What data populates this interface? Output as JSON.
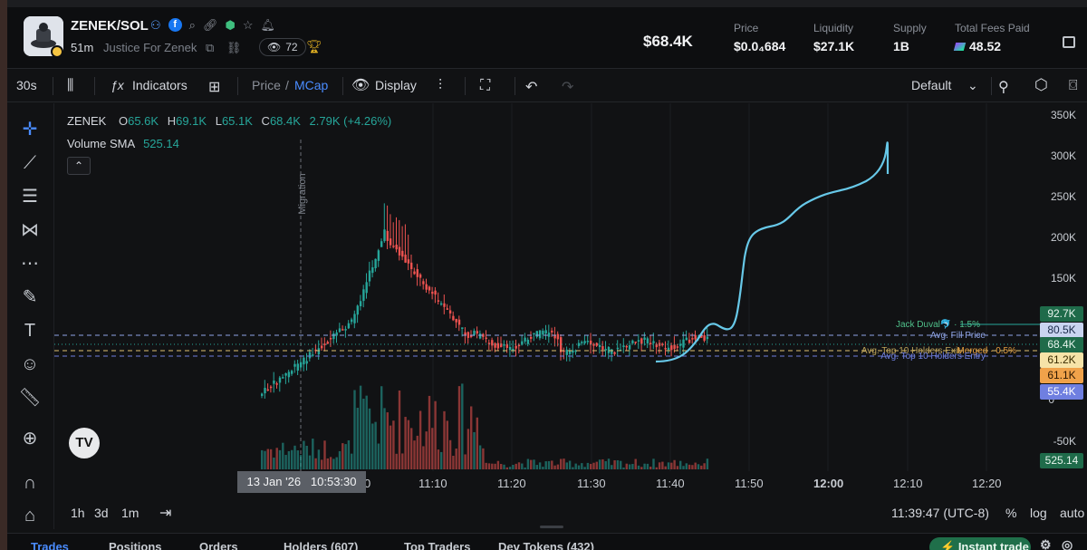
{
  "header": {
    "pair": "ZENEK/SOL",
    "age": "51m",
    "tagline": "Justice For Zenek",
    "viewers": "72",
    "market_cap": "$68.4K",
    "stats": [
      {
        "label": "Price",
        "value": "$0.0₄684"
      },
      {
        "label": "Liquidity",
        "value": "$27.1K"
      },
      {
        "label": "Supply",
        "value": "1B"
      },
      {
        "label": "Total Fees Paid",
        "value": "48.52"
      }
    ]
  },
  "toolbar": {
    "interval": "30s",
    "indicators": "Indicators",
    "price": "Price",
    "slash": "/",
    "mcap": "MCap",
    "display": "Display",
    "layout": "Default"
  },
  "legend": {
    "symbol": "ZENEK",
    "o_key": "O",
    "o": "65.6K",
    "h_key": "H",
    "h": "69.1K",
    "l_key": "L",
    "l": "65.1K",
    "c_key": "C",
    "c": "68.4K",
    "change": "2.79K (+4.26%)",
    "volume_label": "Volume SMA",
    "volume_value": "525.14"
  },
  "annotations": {
    "migration": "Migration",
    "jack": "Jack Duval🐬 · 1.5%",
    "avg_fill": "Avg. Fill Price",
    "avg_top_exit": "Avg. Top 10 Holders Exit",
    "merged_label": "Merged · 0.5%",
    "avg_top_entry": "Avg. Top 10 Holders Entry"
  },
  "y_axis": {
    "ticks": [
      "350K",
      "300K",
      "250K",
      "200K",
      "150K",
      "0",
      "-50K"
    ],
    "badges": [
      {
        "text": "92.7K",
        "bg": "#1f6b4a",
        "fg": "#e6f4ec"
      },
      {
        "text": "80.5K",
        "bg": "#c9d4f0",
        "fg": "#1a2a4a"
      },
      {
        "text": "68.4K",
        "bg": "#1f6b4a",
        "fg": "#e6f4ec"
      },
      {
        "text": "61.2K",
        "bg": "#f6e3a8",
        "fg": "#3a2c00"
      },
      {
        "text": "61.1K",
        "bg": "#f0a24a",
        "fg": "#2a1600"
      },
      {
        "text": "55.4K",
        "bg": "#6f7fe0",
        "fg": "#ffffff"
      },
      {
        "text": "525.14",
        "bg": "#1f6b4a",
        "fg": "#e6f4ec"
      }
    ]
  },
  "x_axis": {
    "crosshair": "13 Jan '26   10:53:30",
    "ticks": [
      "11:10",
      "11:20",
      "11:30",
      "11:40",
      "11:50",
      "12:00",
      "12:10",
      "12:20"
    ],
    "partial": "0"
  },
  "bottom": {
    "ranges": [
      "1h",
      "3d",
      "1m"
    ],
    "clock": "11:39:47 (UTC-8)",
    "pct": "%",
    "log": "log",
    "auto": "auto"
  },
  "tabs": [
    "Trades",
    "Positions",
    "Orders",
    "Holders (607)",
    "Top Traders",
    "Dev Tokens (432)"
  ],
  "instant_trade": "Instant trade",
  "colors": {
    "up": "#26a69a",
    "down": "#ef5350",
    "drawing": "#67c8e8",
    "accent": "#4a8cff"
  },
  "chart_data": {
    "type": "candlestick",
    "x_ticks": [
      "11:10",
      "11:20",
      "11:30",
      "11:40",
      "11:50",
      "12:00",
      "12:10",
      "12:20"
    ],
    "y_ticks": [
      "350K",
      "300K",
      "250K",
      "200K",
      "150K",
      "0",
      "-50K"
    ],
    "last_close": "68.4K"
  }
}
